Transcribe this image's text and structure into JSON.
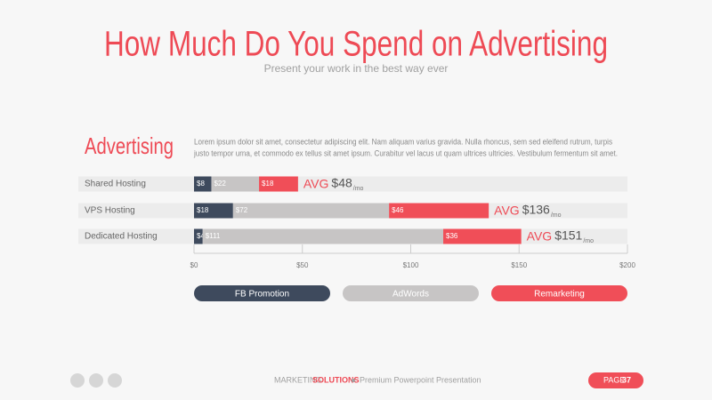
{
  "slide": {
    "title": "How Much Do You Spend on Advertising",
    "subtitle": "Present your work in the best way ever",
    "heading": "Advertising",
    "body_lines": [
      "Lorem ipsum dolor sit amet, consectetur adipiscing elit. Nam aliquam varius gravida. Nulla rhoncus, sem sed eleifend rutrum, turpis",
      "justo tempor urna, et commodo ex tellus sit amet ipsum. Curabitur vel lacus ut quam ultrices ultricies. Vestibulum fermentum sit amet."
    ],
    "footer_brand": "MARKETING",
    "footer_brand_highlight": "SOLUTIONS",
    "footer_text": "Premium Powerpoint Presentation",
    "page_label": "PAGE",
    "page_number": "37"
  },
  "chart_data": {
    "type": "bar",
    "orientation": "horizontal",
    "stacked": true,
    "categories": [
      "Shared Hosting",
      "VPS Hosting",
      "Dedicated Hosting"
    ],
    "series": [
      {
        "name": "FB Promotion",
        "color": "#3e4a5d",
        "values": [
          8,
          18,
          4
        ],
        "value_labels": [
          "$8",
          "$18",
          "$4"
        ]
      },
      {
        "name": "AdWords",
        "color": "#c7c5c5",
        "values": [
          22,
          72,
          111
        ],
        "value_labels": [
          "$22",
          "$72",
          "$111"
        ]
      },
      {
        "name": "Remarketing",
        "color": "#f04e58",
        "values": [
          18,
          46,
          36
        ],
        "value_labels": [
          "$18",
          "$46",
          "$36"
        ]
      }
    ],
    "avg_label": "AVG",
    "avg_values": [
      "$48",
      "$136",
      "$151"
    ],
    "avg_unit": "/mo",
    "xlim": [
      0,
      200
    ],
    "xticks": [
      {
        "value": 0,
        "label": "$0"
      },
      {
        "value": 50,
        "label": "$50"
      },
      {
        "value": 100,
        "label": "$100"
      },
      {
        "value": 150,
        "label": "$150"
      },
      {
        "value": 200,
        "label": "$200"
      }
    ]
  }
}
